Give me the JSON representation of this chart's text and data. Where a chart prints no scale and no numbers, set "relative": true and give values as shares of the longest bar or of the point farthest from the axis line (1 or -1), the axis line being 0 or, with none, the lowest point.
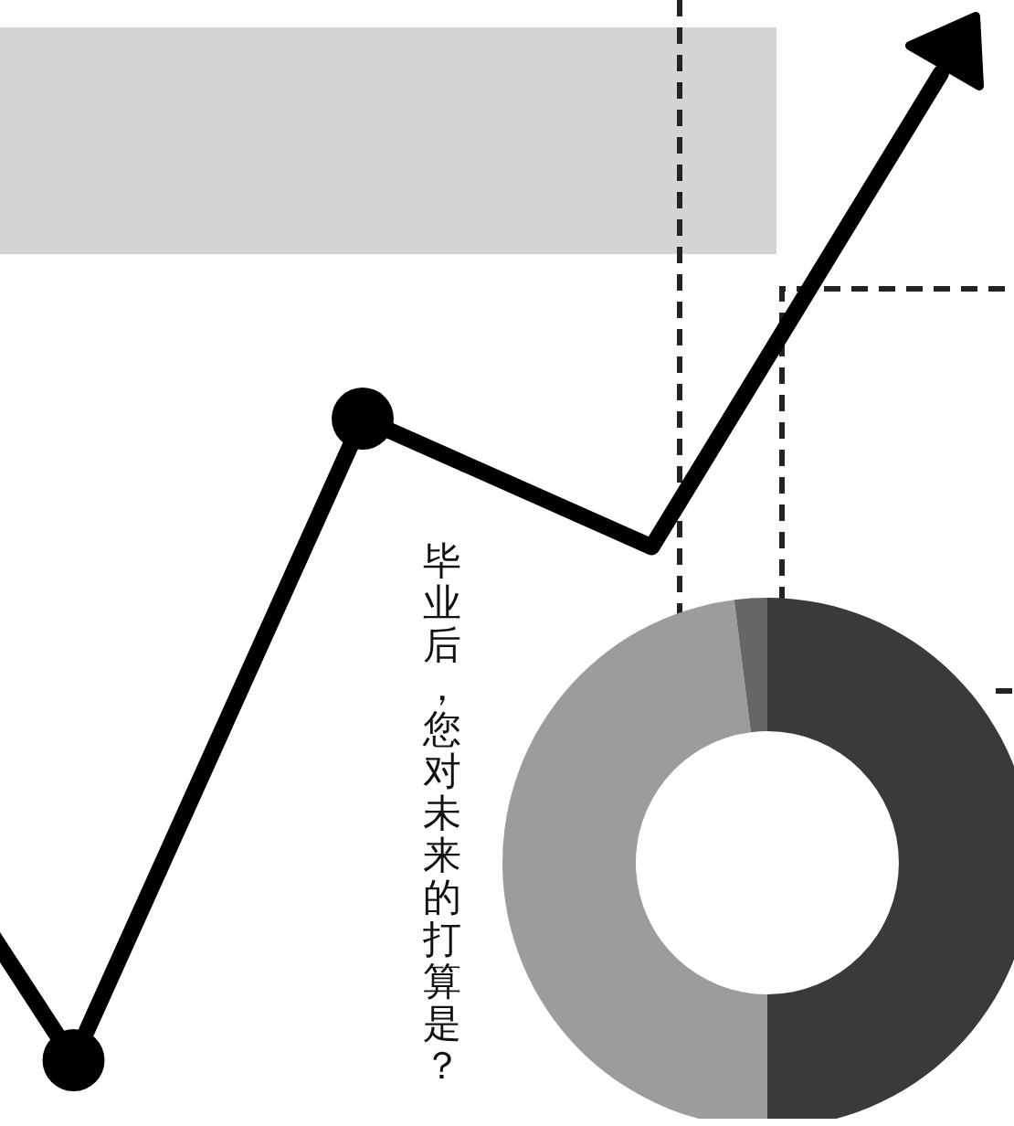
{
  "chart_data": [
    {
      "type": "line",
      "relative": true,
      "categories": [
        null,
        null,
        null,
        null,
        null
      ],
      "values": [
        0.45,
        0,
        0.65,
        0.52,
        1
      ],
      "color": "#000000"
    },
    {
      "type": "donut",
      "title": "毕业后，您对未来的打算是？",
      "categories": [
        null,
        null,
        null
      ],
      "values": [
        50,
        48,
        2
      ],
      "colors": [
        "#3a3a3a",
        "#9c9c9c",
        "#666666"
      ]
    }
  ]
}
